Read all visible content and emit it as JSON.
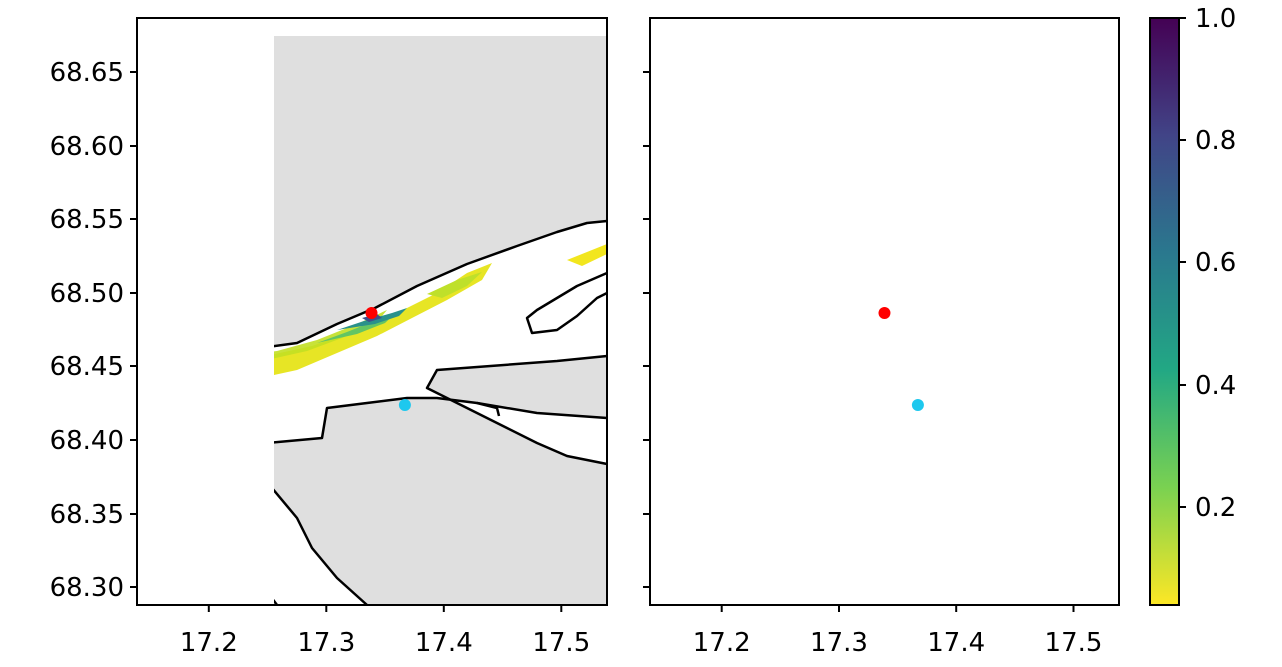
{
  "chart_data": {
    "type": "heatmap",
    "panels": [
      {
        "id": "left",
        "xlim": [
          17.14,
          17.54
        ],
        "ylim": [
          68.287,
          68.685
        ],
        "xticks": [
          "17.2",
          "17.3",
          "17.4",
          "17.5"
        ],
        "yticks": [
          "68.30",
          "68.35",
          "68.40",
          "68.45",
          "68.50",
          "68.55",
          "68.60",
          "68.65"
        ],
        "markers": [
          {
            "name": "red",
            "lon": 17.339,
            "lat": 68.486,
            "color": "#ff0000"
          },
          {
            "name": "cyan",
            "lon": 17.368,
            "lat": 68.423,
            "color": "#1ec8ee"
          }
        ]
      },
      {
        "id": "right",
        "xlim": [
          17.14,
          17.54
        ],
        "ylim": [
          68.287,
          68.685
        ],
        "xticks": [
          "17.2",
          "17.3",
          "17.4",
          "17.5"
        ],
        "yticks": [],
        "markers": [
          {
            "name": "red",
            "lon": 17.339,
            "lat": 68.486,
            "color": "#ff0000"
          },
          {
            "name": "cyan",
            "lon": 17.368,
            "lat": 68.423,
            "color": "#1ec8ee"
          }
        ]
      }
    ],
    "colorbar": {
      "colormap": "viridis (reversed)",
      "range": [
        0.04,
        1.0
      ],
      "ticks": [
        "0.2",
        "0.4",
        "0.6",
        "0.8",
        "1.0"
      ],
      "tick_values": [
        0.2,
        0.4,
        0.6,
        0.8,
        1.0
      ]
    }
  },
  "colors": {
    "land": "#dfdfdf",
    "water": "#ffffff",
    "coastline": "#000000"
  },
  "labels": {
    "y1": "68.30",
    "y2": "68.35",
    "y3": "68.40",
    "y4": "68.45",
    "y5": "68.50",
    "y6": "68.55",
    "y7": "68.60",
    "y8": "68.65",
    "x1": "17.2",
    "x2": "17.3",
    "x3": "17.4",
    "x4": "17.5",
    "cb1": "0.2",
    "cb2": "0.4",
    "cb3": "0.6",
    "cb4": "0.8",
    "cb5": "1.0"
  }
}
